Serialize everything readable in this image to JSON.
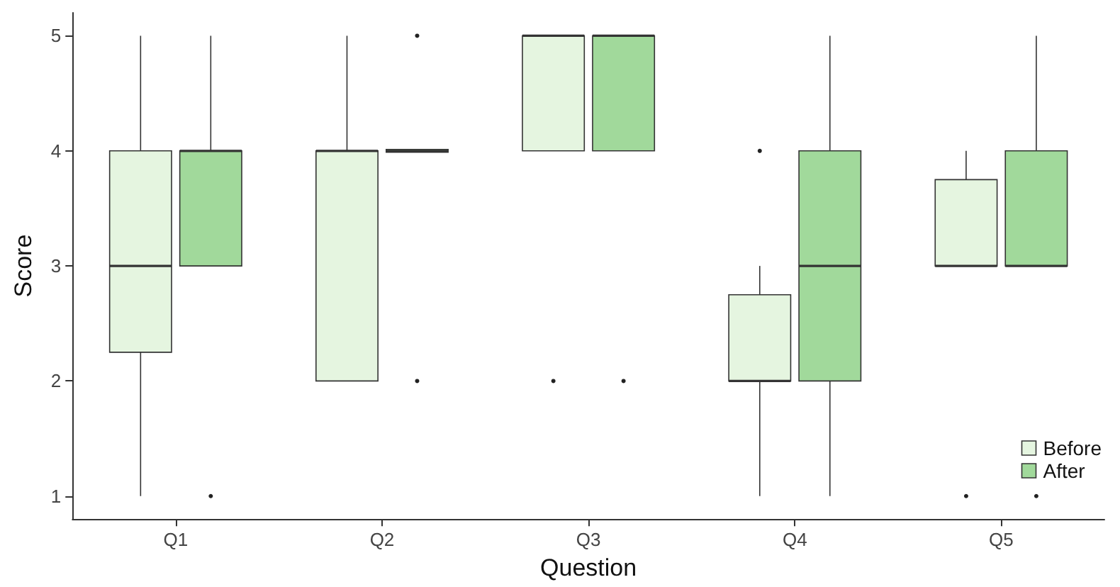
{
  "chart_data": {
    "type": "box",
    "xlabel": "Question",
    "ylabel": "Score",
    "categories": [
      "Q1",
      "Q2",
      "Q3",
      "Q4",
      "Q5"
    ],
    "ylim": [
      0.8,
      5.2
    ],
    "yticks": [
      1,
      2,
      3,
      4,
      5
    ],
    "grid": false,
    "legend": "bottom right",
    "series": [
      {
        "name": "Before",
        "color": "#e5f5e0",
        "boxes": [
          {
            "low": 1,
            "q1": 2.25,
            "median": 3,
            "q3": 4,
            "high": 5
          },
          {
            "low": 2,
            "q1": 2,
            "median": 4,
            "q3": 4,
            "high": 5
          },
          {
            "low": 4,
            "q1": 4,
            "median": 5,
            "q3": 5,
            "high": 5,
            "outliers": [
              2
            ]
          },
          {
            "low": 1,
            "q1": 2,
            "median": 2,
            "q3": 2.75,
            "high": 3,
            "outliers": [
              4
            ]
          },
          {
            "low": 3,
            "q1": 3,
            "median": 3,
            "q3": 3.75,
            "high": 4,
            "outliers": [
              1
            ]
          }
        ]
      },
      {
        "name": "After",
        "color": "#a1d99b",
        "boxes": [
          {
            "low": 3,
            "q1": 3,
            "median": 4,
            "q3": 4,
            "high": 5,
            "outliers": [
              1
            ]
          },
          {
            "low": 4,
            "q1": 4,
            "median": 4,
            "q3": 4,
            "high": 4,
            "outliers": [
              5,
              2
            ]
          },
          {
            "low": 4,
            "q1": 4,
            "median": 5,
            "q3": 5,
            "high": 5,
            "outliers": [
              2
            ]
          },
          {
            "low": 1,
            "q1": 2,
            "median": 3,
            "q3": 4,
            "high": 5
          },
          {
            "low": 3,
            "q1": 3,
            "median": 3,
            "q3": 4,
            "high": 5,
            "outliers": [
              1
            ]
          }
        ]
      }
    ]
  }
}
